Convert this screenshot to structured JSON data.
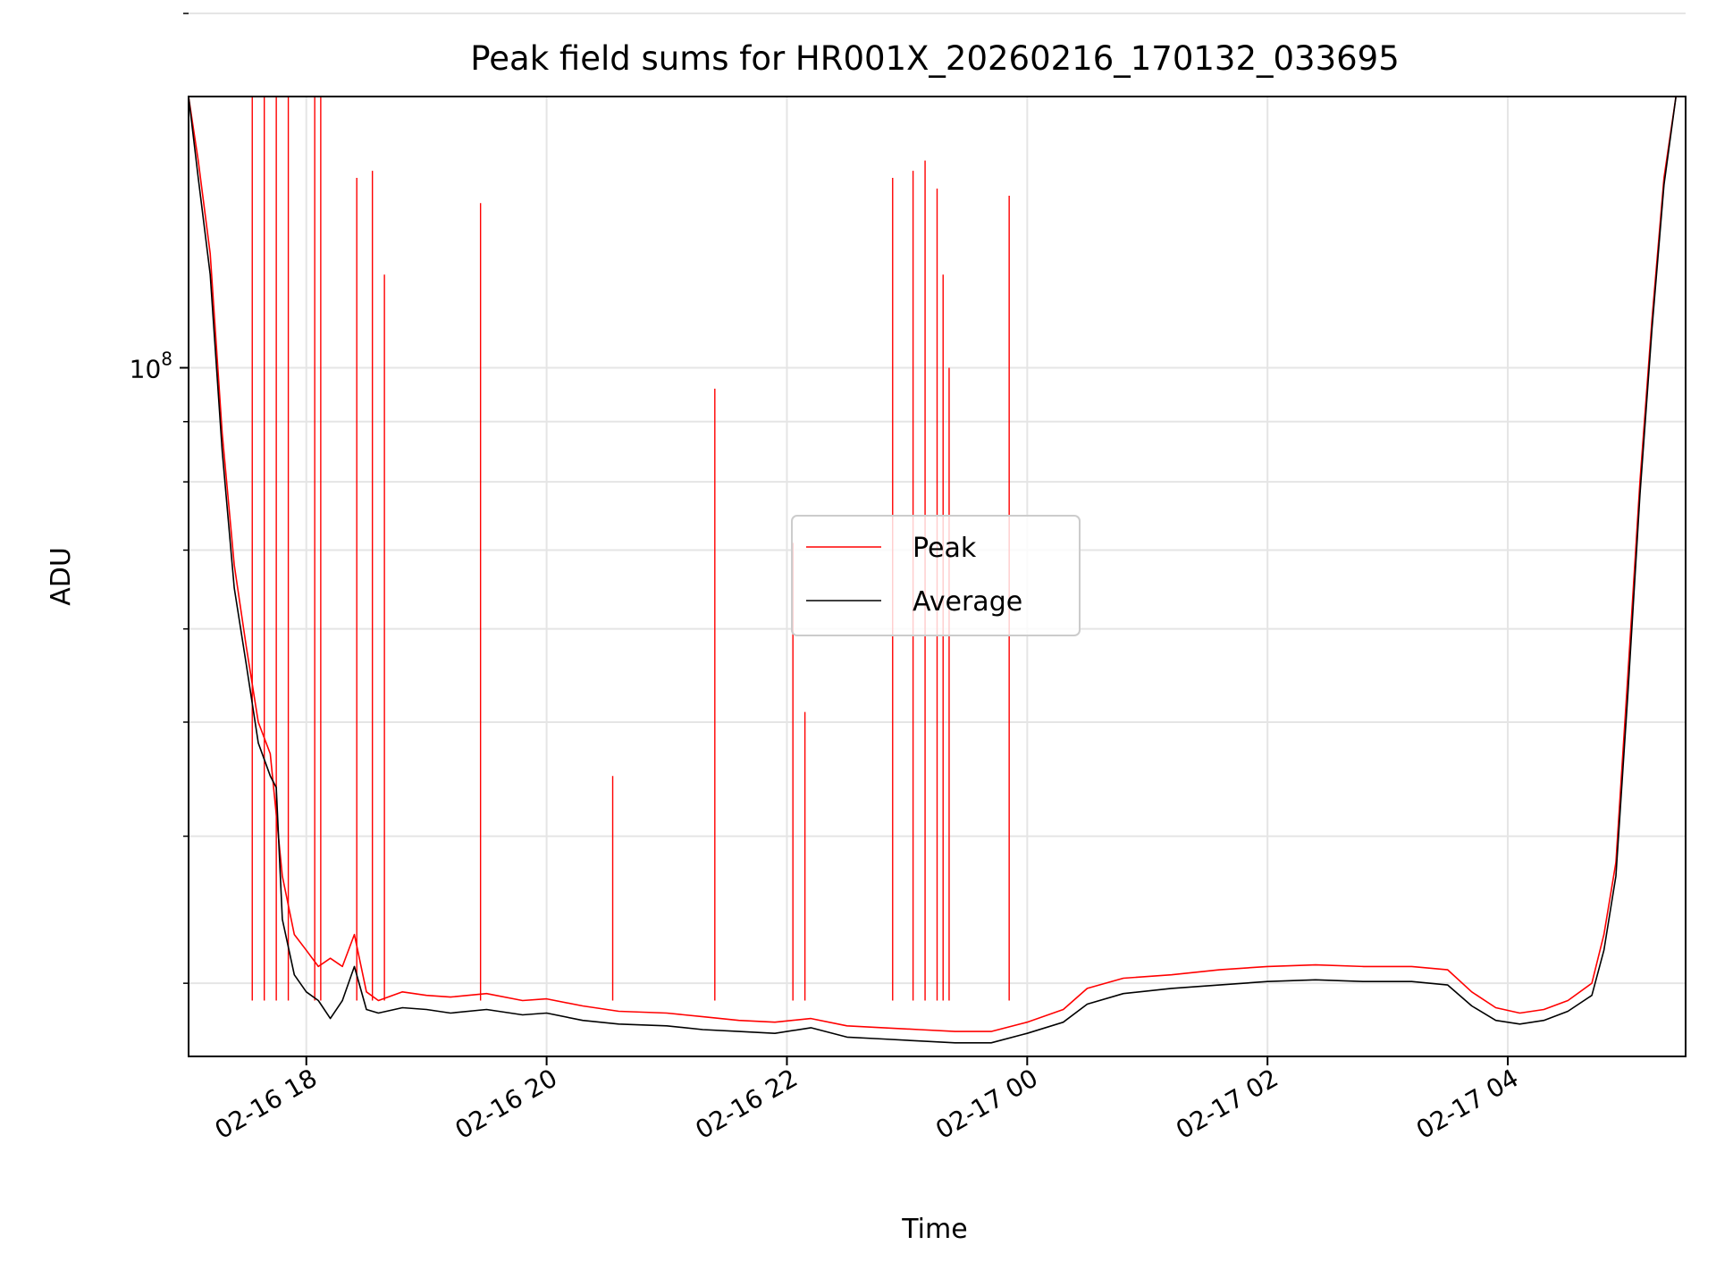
{
  "chart_data": {
    "type": "line",
    "title": "Peak field sums for HR001X_20260216_170132_033695",
    "xlabel": "Time",
    "ylabel": "ADU",
    "yscale": "log",
    "ylim": [
      26000000,
      170000000
    ],
    "xlim_hours": [
      17.02,
      29.48
    ],
    "x_unit": "hours since 02-16 00:00",
    "grid": true,
    "legend_position": "center",
    "x_ticks": [
      {
        "value": 18,
        "label": "02-16 18"
      },
      {
        "value": 20,
        "label": "02-16 20"
      },
      {
        "value": 22,
        "label": "02-16 22"
      },
      {
        "value": 24,
        "label": "02-17 00"
      },
      {
        "value": 26,
        "label": "02-17 02"
      },
      {
        "value": 28,
        "label": "02-17 04"
      }
    ],
    "y_major_tick": {
      "value": 100000000,
      "label_base": "10",
      "label_exp": "8"
    },
    "y_minor_ticks": [
      30000000,
      40000000,
      50000000,
      60000000,
      70000000,
      80000000,
      90000000,
      200000000
    ],
    "series": [
      {
        "name": "Peak",
        "color": "#ff0000",
        "points": [
          [
            17.02,
            170000000
          ],
          [
            17.1,
            150000000
          ],
          [
            17.2,
            125000000
          ],
          [
            17.3,
            88000000
          ],
          [
            17.4,
            68000000
          ],
          [
            17.5,
            58000000
          ],
          [
            17.6,
            50000000
          ],
          [
            17.7,
            47000000
          ],
          [
            17.8,
            37000000
          ],
          [
            17.9,
            33000000
          ],
          [
            18.0,
            32000000
          ],
          [
            18.1,
            31000000
          ],
          [
            18.2,
            31500000
          ],
          [
            18.3,
            31000000
          ],
          [
            18.4,
            33000000
          ],
          [
            18.5,
            29500000
          ],
          [
            18.6,
            29000000
          ],
          [
            18.8,
            29500000
          ],
          [
            19.0,
            29300000
          ],
          [
            19.2,
            29200000
          ],
          [
            19.5,
            29400000
          ],
          [
            19.8,
            29000000
          ],
          [
            20.0,
            29100000
          ],
          [
            20.3,
            28700000
          ],
          [
            20.6,
            28400000
          ],
          [
            21.0,
            28300000
          ],
          [
            21.3,
            28100000
          ],
          [
            21.6,
            27900000
          ],
          [
            21.9,
            27800000
          ],
          [
            22.2,
            28000000
          ],
          [
            22.5,
            27600000
          ],
          [
            22.8,
            27500000
          ],
          [
            23.1,
            27400000
          ],
          [
            23.4,
            27300000
          ],
          [
            23.7,
            27300000
          ],
          [
            24.0,
            27800000
          ],
          [
            24.3,
            28500000
          ],
          [
            24.5,
            29700000
          ],
          [
            24.8,
            30300000
          ],
          [
            25.2,
            30500000
          ],
          [
            25.6,
            30800000
          ],
          [
            26.0,
            31000000
          ],
          [
            26.4,
            31100000
          ],
          [
            26.8,
            31000000
          ],
          [
            27.2,
            31000000
          ],
          [
            27.5,
            30800000
          ],
          [
            27.7,
            29500000
          ],
          [
            27.9,
            28600000
          ],
          [
            28.1,
            28300000
          ],
          [
            28.3,
            28500000
          ],
          [
            28.5,
            29000000
          ],
          [
            28.7,
            30000000
          ],
          [
            28.8,
            33000000
          ],
          [
            28.9,
            38000000
          ],
          [
            29.0,
            55000000
          ],
          [
            29.1,
            80000000
          ],
          [
            29.2,
            110000000
          ],
          [
            29.3,
            145000000
          ],
          [
            29.4,
            170000000
          ],
          [
            29.48,
            170000000
          ]
        ],
        "spikes": [
          [
            17.55,
            170000000
          ],
          [
            17.65,
            170000000
          ],
          [
            17.75,
            170000000
          ],
          [
            17.85,
            170000000
          ],
          [
            18.07,
            170000000
          ],
          [
            18.12,
            170000000
          ],
          [
            18.42,
            145000000
          ],
          [
            18.55,
            147000000
          ],
          [
            18.65,
            120000000
          ],
          [
            19.45,
            138000000
          ],
          [
            20.55,
            45000000
          ],
          [
            21.4,
            96000000
          ],
          [
            22.05,
            71000000
          ],
          [
            22.15,
            51000000
          ],
          [
            22.88,
            145000000
          ],
          [
            23.05,
            147000000
          ],
          [
            23.15,
            150000000
          ],
          [
            23.25,
            142000000
          ],
          [
            23.3,
            120000000
          ],
          [
            23.35,
            100000000
          ],
          [
            23.85,
            140000000
          ]
        ]
      },
      {
        "name": "Average",
        "color": "#000000",
        "points": [
          [
            17.02,
            170000000
          ],
          [
            17.1,
            145000000
          ],
          [
            17.2,
            120000000
          ],
          [
            17.3,
            85000000
          ],
          [
            17.4,
            65000000
          ],
          [
            17.5,
            56000000
          ],
          [
            17.6,
            48000000
          ],
          [
            17.7,
            45000000
          ],
          [
            17.75,
            44000000
          ],
          [
            17.8,
            34000000
          ],
          [
            17.9,
            30500000
          ],
          [
            18.0,
            29500000
          ],
          [
            18.1,
            29000000
          ],
          [
            18.2,
            28000000
          ],
          [
            18.3,
            29000000
          ],
          [
            18.4,
            31000000
          ],
          [
            18.5,
            28500000
          ],
          [
            18.6,
            28300000
          ],
          [
            18.8,
            28600000
          ],
          [
            19.0,
            28500000
          ],
          [
            19.2,
            28300000
          ],
          [
            19.5,
            28500000
          ],
          [
            19.8,
            28200000
          ],
          [
            20.0,
            28300000
          ],
          [
            20.3,
            27900000
          ],
          [
            20.6,
            27700000
          ],
          [
            21.0,
            27600000
          ],
          [
            21.3,
            27400000
          ],
          [
            21.6,
            27300000
          ],
          [
            21.9,
            27200000
          ],
          [
            22.2,
            27500000
          ],
          [
            22.5,
            27000000
          ],
          [
            22.8,
            26900000
          ],
          [
            23.1,
            26800000
          ],
          [
            23.4,
            26700000
          ],
          [
            23.7,
            26700000
          ],
          [
            24.0,
            27200000
          ],
          [
            24.3,
            27800000
          ],
          [
            24.5,
            28800000
          ],
          [
            24.8,
            29400000
          ],
          [
            25.2,
            29700000
          ],
          [
            25.6,
            29900000
          ],
          [
            26.0,
            30100000
          ],
          [
            26.4,
            30200000
          ],
          [
            26.8,
            30100000
          ],
          [
            27.2,
            30100000
          ],
          [
            27.5,
            29900000
          ],
          [
            27.7,
            28700000
          ],
          [
            27.9,
            27900000
          ],
          [
            28.1,
            27700000
          ],
          [
            28.3,
            27900000
          ],
          [
            28.5,
            28400000
          ],
          [
            28.7,
            29300000
          ],
          [
            28.8,
            32000000
          ],
          [
            28.9,
            37000000
          ],
          [
            29.0,
            53000000
          ],
          [
            29.1,
            78000000
          ],
          [
            29.2,
            108000000
          ],
          [
            29.3,
            143000000
          ],
          [
            29.4,
            170000000
          ],
          [
            29.48,
            170000000
          ]
        ]
      }
    ]
  }
}
